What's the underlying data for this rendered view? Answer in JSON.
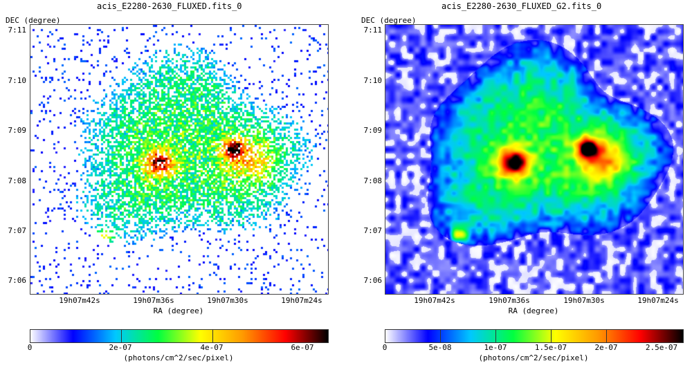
{
  "left": {
    "title": "acis_E2280-2630_FLUXED.fits_0",
    "dec_label": "DEC (degree)",
    "ra_label": "RA (degree)",
    "y_ticks": [
      "7:11",
      "7:10",
      "7:09",
      "7:08",
      "7:07",
      "7:06"
    ],
    "x_ticks": [
      "19h07m42s",
      "19h07m36s",
      "19h07m30s",
      "19h07m24s"
    ],
    "colorbar": {
      "ticks": [
        "0",
        "2e-07",
        "4e-07",
        "6e-07"
      ],
      "units": "(photons/cm^2/sec/pixel)"
    }
  },
  "right": {
    "title": "acis_E2280-2630_FLUXED_G2.fits_0",
    "dec_label": "DEC (degree)",
    "ra_label": "RA (degree)",
    "y_ticks": [
      "7:11",
      "7:10",
      "7:09",
      "7:08",
      "7:07",
      "7:06"
    ],
    "x_ticks": [
      "19h07m42s",
      "19h07m36s",
      "19h07m30s",
      "19h07m24s"
    ],
    "colorbar": {
      "ticks": [
        "0",
        "5e-08",
        "1e-07",
        "1.5e-07",
        "2e-07",
        "2.5e-07"
      ],
      "units": "(photons/cm^2/sec/pixel)"
    }
  },
  "colormap": [
    "#ffffff",
    "#0000ff",
    "#00c8ff",
    "#00ff40",
    "#ffff00",
    "#ff9900",
    "#ff0000",
    "#000000"
  ]
}
